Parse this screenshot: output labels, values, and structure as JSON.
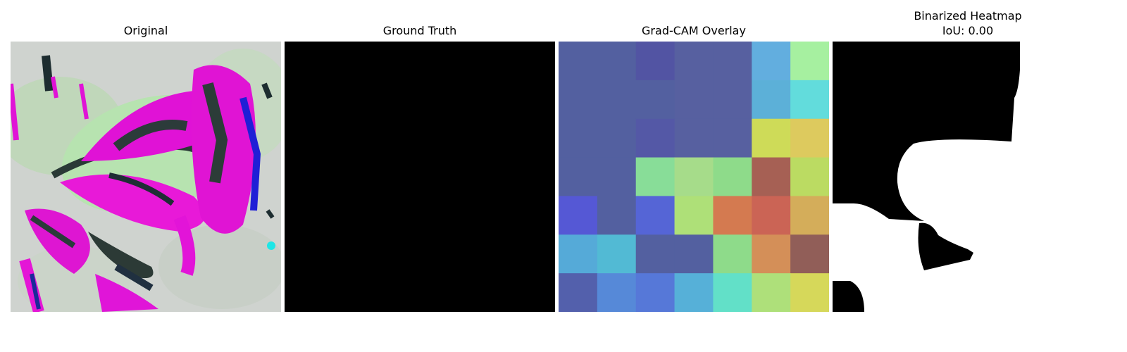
{
  "panels": [
    {
      "title": "Original"
    },
    {
      "title": "Ground Truth"
    },
    {
      "title": "Grad-CAM Overlay"
    },
    {
      "title": "Binarized Heatmap",
      "subtitle": "IoU: 0.00"
    }
  ],
  "gradcam": {
    "rows": 7,
    "cols": 7,
    "cells": [
      [
        "#5360a0",
        "#5360a0",
        "#5254a3",
        "#5760a0",
        "#5760a0",
        "#62aedf",
        "#a6f0a0"
      ],
      [
        "#5360a0",
        "#5360a0",
        "#5360a0",
        "#5760a0",
        "#5760a0",
        "#5cb0d8",
        "#62dcdc"
      ],
      [
        "#5360a0",
        "#5360a0",
        "#5458a6",
        "#5760a0",
        "#5760a0",
        "#cedb58",
        "#ddca5e"
      ],
      [
        "#5360a0",
        "#5360a0",
        "#88dd98",
        "#a6dc8a",
        "#8edb8a",
        "#a66054",
        "#bbdb62"
      ],
      [
        "#5558d5",
        "#5360a0",
        "#5565d6",
        "#aee078",
        "#d47a50",
        "#cb6455",
        "#d4ad5a"
      ],
      [
        "#55aad8",
        "#52bad4",
        "#5360a0",
        "#5360a0",
        "#8edb8a",
        "#d48f58",
        "#915e58"
      ],
      [
        "#5360ac",
        "#5689d8",
        "#5678d8",
        "#56b0d8",
        "#62e0c8",
        "#aee07a",
        "#d6d85a"
      ]
    ]
  },
  "colors": {
    "ground_truth": "#000000",
    "mask_foreground": "#ffffff",
    "mask_background": "#000000"
  }
}
